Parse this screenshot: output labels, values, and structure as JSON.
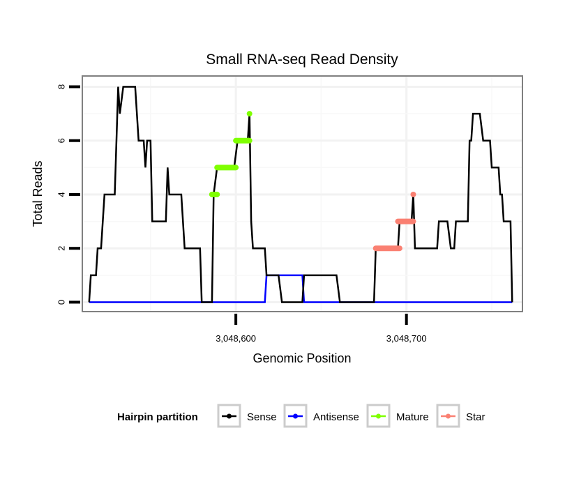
{
  "chart_data": {
    "type": "line",
    "title": "Small RNA-seq Read Density",
    "xlabel": "Genomic Position",
    "ylabel": "Total Reads",
    "xlim": [
      3048510,
      3048768
    ],
    "ylim": [
      -0.35,
      8.4
    ],
    "x_ticks": [
      3048600,
      3048700
    ],
    "x_tick_labels": [
      "3,048,600",
      "3,048,700"
    ],
    "y_ticks": [
      0,
      2,
      4,
      6,
      8
    ],
    "y_tick_labels": [
      "0",
      "2",
      "4",
      "6",
      "8"
    ],
    "grid": true,
    "legend": {
      "title": "Hairpin partition",
      "position": "bottom",
      "entries": [
        {
          "name": "Sense",
          "color": "#000000"
        },
        {
          "name": "Antisense",
          "color": "#0000ff"
        },
        {
          "name": "Mature",
          "color": "#7fff00"
        },
        {
          "name": "Star",
          "color": "#fa8072"
        }
      ]
    },
    "series": [
      {
        "name": "Sense",
        "color": "#000000",
        "style": "line",
        "points": [
          [
            3048514,
            0
          ],
          [
            3048515,
            1
          ],
          [
            3048518,
            1
          ],
          [
            3048519,
            2
          ],
          [
            3048521,
            2
          ],
          [
            3048523,
            4
          ],
          [
            3048529,
            4
          ],
          [
            3048531,
            8
          ],
          [
            3048532,
            7
          ],
          [
            3048534,
            8
          ],
          [
            3048541,
            8
          ],
          [
            3048543,
            6
          ],
          [
            3048546,
            6
          ],
          [
            3048547,
            5
          ],
          [
            3048548,
            6
          ],
          [
            3048550,
            6
          ],
          [
            3048551,
            3
          ],
          [
            3048559,
            3
          ],
          [
            3048560,
            5
          ],
          [
            3048561,
            4
          ],
          [
            3048568,
            4
          ],
          [
            3048570,
            2
          ],
          [
            3048579,
            2
          ],
          [
            3048580,
            0
          ],
          [
            3048586,
            0
          ],
          [
            3048587,
            4
          ],
          [
            3048589,
            5
          ],
          [
            3048599,
            5
          ],
          [
            3048601,
            6
          ],
          [
            3048607,
            6
          ],
          [
            3048608,
            7
          ],
          [
            3048609,
            3
          ],
          [
            3048610,
            2
          ],
          [
            3048617,
            2
          ],
          [
            3048618,
            1
          ],
          [
            3048625,
            1
          ],
          [
            3048627,
            0
          ],
          [
            3048639,
            0
          ],
          [
            3048640,
            1
          ],
          [
            3048659,
            1
          ],
          [
            3048661,
            0
          ],
          [
            3048681,
            0
          ],
          [
            3048682,
            2
          ],
          [
            3048695,
            2
          ],
          [
            3048696,
            3
          ],
          [
            3048703,
            3
          ],
          [
            3048704,
            4
          ],
          [
            3048705,
            2
          ],
          [
            3048718,
            2
          ],
          [
            3048719,
            3
          ],
          [
            3048724,
            3
          ],
          [
            3048726,
            2
          ],
          [
            3048728,
            2
          ],
          [
            3048729,
            3
          ],
          [
            3048736,
            3
          ],
          [
            3048737,
            6
          ],
          [
            3048738,
            6
          ],
          [
            3048739,
            7
          ],
          [
            3048743,
            7
          ],
          [
            3048745,
            6
          ],
          [
            3048749,
            6
          ],
          [
            3048750,
            5
          ],
          [
            3048754,
            5
          ],
          [
            3048755,
            4
          ],
          [
            3048756,
            4
          ],
          [
            3048757,
            3
          ],
          [
            3048761,
            3
          ],
          [
            3048762,
            0
          ]
        ]
      },
      {
        "name": "Antisense",
        "color": "#0000ff",
        "style": "line",
        "points": [
          [
            3048514,
            0
          ],
          [
            3048617,
            0
          ],
          [
            3048618,
            1
          ],
          [
            3048639,
            1
          ],
          [
            3048640,
            0
          ],
          [
            3048762,
            0
          ]
        ]
      },
      {
        "name": "Mature",
        "color": "#7fff00",
        "style": "thick-points",
        "segments": [
          {
            "x": [
              3048586,
              3048589
            ],
            "y": 4
          },
          {
            "x": [
              3048589,
              3048600
            ],
            "y": 5
          },
          {
            "x": [
              3048600,
              3048608
            ],
            "y": 6
          },
          {
            "x": [
              3048608,
              3048608
            ],
            "y": 7
          }
        ]
      },
      {
        "name": "Star",
        "color": "#fa8072",
        "style": "thick-points",
        "segments": [
          {
            "x": [
              3048682,
              3048696
            ],
            "y": 2
          },
          {
            "x": [
              3048695,
              3048704
            ],
            "y": 3
          },
          {
            "x": [
              3048704,
              3048704
            ],
            "y": 4
          }
        ]
      }
    ]
  }
}
